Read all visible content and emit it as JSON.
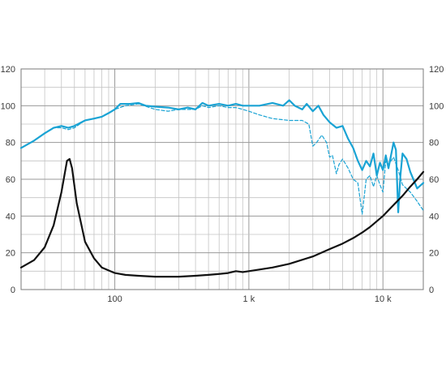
{
  "chart_data": {
    "type": "line",
    "x_scale": "log",
    "xlim": [
      20,
      20000
    ],
    "ylim": [
      0,
      120
    ],
    "grid": true,
    "legend": "none",
    "title": "",
    "xlabel": "",
    "ylabel": "",
    "y_ticks": [
      0,
      20,
      40,
      60,
      80,
      100,
      120
    ],
    "x_tick_labels": [
      {
        "value": 100,
        "label": "100"
      },
      {
        "value": 1000,
        "label": "1 k"
      },
      {
        "value": 10000,
        "label": "10 k"
      }
    ],
    "series": [
      {
        "color": "#1aa3d4",
        "style": "solid",
        "points": [
          [
            20,
            77
          ],
          [
            25,
            81
          ],
          [
            30,
            85
          ],
          [
            35,
            88
          ],
          [
            40,
            89
          ],
          [
            45,
            88
          ],
          [
            50,
            89
          ],
          [
            60,
            92
          ],
          [
            70,
            93
          ],
          [
            80,
            94
          ],
          [
            90,
            96
          ],
          [
            100,
            98
          ],
          [
            110,
            101
          ],
          [
            130,
            101
          ],
          [
            150,
            101.5
          ],
          [
            170,
            100
          ],
          [
            200,
            99.5
          ],
          [
            250,
            99
          ],
          [
            300,
            98
          ],
          [
            350,
            99
          ],
          [
            400,
            98
          ],
          [
            450,
            101.5
          ],
          [
            500,
            100
          ],
          [
            600,
            101
          ],
          [
            700,
            100
          ],
          [
            800,
            101
          ],
          [
            900,
            100
          ],
          [
            1000,
            100
          ],
          [
            1200,
            100
          ],
          [
            1500,
            101.5
          ],
          [
            1800,
            100
          ],
          [
            2000,
            103
          ],
          [
            2200,
            100
          ],
          [
            2500,
            98
          ],
          [
            2700,
            101
          ],
          [
            3000,
            97
          ],
          [
            3300,
            100
          ],
          [
            3600,
            95
          ],
          [
            4000,
            91
          ],
          [
            4500,
            88
          ],
          [
            5000,
            89
          ],
          [
            5500,
            82
          ],
          [
            6000,
            77
          ],
          [
            6500,
            70
          ],
          [
            7000,
            65
          ],
          [
            7500,
            70
          ],
          [
            8000,
            67
          ],
          [
            8500,
            74
          ],
          [
            9000,
            62
          ],
          [
            9500,
            69
          ],
          [
            10000,
            65
          ],
          [
            10500,
            73
          ],
          [
            11000,
            66
          ],
          [
            12000,
            80
          ],
          [
            12500,
            76
          ],
          [
            13000,
            42
          ],
          [
            13500,
            62
          ],
          [
            14000,
            74
          ],
          [
            15000,
            71
          ],
          [
            16000,
            64
          ],
          [
            18000,
            55
          ],
          [
            20000,
            58
          ]
        ]
      },
      {
        "color": "#1aa3d4",
        "style": "dashed",
        "points": [
          [
            20,
            77
          ],
          [
            25,
            81
          ],
          [
            30,
            85
          ],
          [
            35,
            88
          ],
          [
            40,
            88
          ],
          [
            45,
            87
          ],
          [
            50,
            88
          ],
          [
            60,
            92
          ],
          [
            70,
            93
          ],
          [
            80,
            94
          ],
          [
            90,
            96
          ],
          [
            100,
            98
          ],
          [
            120,
            100
          ],
          [
            150,
            101
          ],
          [
            200,
            98
          ],
          [
            250,
            97
          ],
          [
            300,
            98
          ],
          [
            400,
            98
          ],
          [
            450,
            100
          ],
          [
            500,
            99
          ],
          [
            600,
            100
          ],
          [
            700,
            99
          ],
          [
            800,
            99
          ],
          [
            900,
            98
          ],
          [
            1000,
            97
          ],
          [
            1200,
            95
          ],
          [
            1500,
            93
          ],
          [
            2000,
            92
          ],
          [
            2500,
            92
          ],
          [
            2800,
            90
          ],
          [
            3000,
            78
          ],
          [
            3200,
            80
          ],
          [
            3500,
            84
          ],
          [
            3800,
            80
          ],
          [
            4000,
            72
          ],
          [
            4200,
            73
          ],
          [
            4500,
            63
          ],
          [
            4700,
            68
          ],
          [
            5000,
            71
          ],
          [
            5500,
            66
          ],
          [
            6000,
            60
          ],
          [
            6500,
            58
          ],
          [
            7000,
            41
          ],
          [
            7500,
            60
          ],
          [
            8000,
            62
          ],
          [
            8500,
            56
          ],
          [
            9000,
            62
          ],
          [
            9500,
            57
          ],
          [
            10000,
            53
          ],
          [
            10500,
            70
          ],
          [
            11000,
            68
          ],
          [
            12000,
            72
          ],
          [
            13000,
            65
          ],
          [
            14000,
            57
          ],
          [
            16000,
            53
          ],
          [
            18000,
            48
          ],
          [
            20000,
            43
          ]
        ]
      },
      {
        "color": "#111111",
        "style": "solid",
        "points": [
          [
            20,
            12
          ],
          [
            25,
            16
          ],
          [
            30,
            23
          ],
          [
            35,
            35
          ],
          [
            40,
            53
          ],
          [
            44,
            70
          ],
          [
            46,
            71
          ],
          [
            48,
            66
          ],
          [
            52,
            47
          ],
          [
            60,
            26
          ],
          [
            70,
            17
          ],
          [
            80,
            12
          ],
          [
            100,
            9
          ],
          [
            120,
            8
          ],
          [
            150,
            7.5
          ],
          [
            200,
            7
          ],
          [
            300,
            7
          ],
          [
            400,
            7.5
          ],
          [
            500,
            8
          ],
          [
            600,
            8.5
          ],
          [
            700,
            9
          ],
          [
            800,
            10
          ],
          [
            900,
            9.5
          ],
          [
            1000,
            10
          ],
          [
            1500,
            12
          ],
          [
            2000,
            14
          ],
          [
            3000,
            18
          ],
          [
            4000,
            22
          ],
          [
            5000,
            25
          ],
          [
            6000,
            28
          ],
          [
            7000,
            31
          ],
          [
            8000,
            34
          ],
          [
            10000,
            40
          ],
          [
            12000,
            46
          ],
          [
            14000,
            51
          ],
          [
            16000,
            56
          ],
          [
            18000,
            60
          ],
          [
            20000,
            64
          ]
        ]
      }
    ]
  }
}
